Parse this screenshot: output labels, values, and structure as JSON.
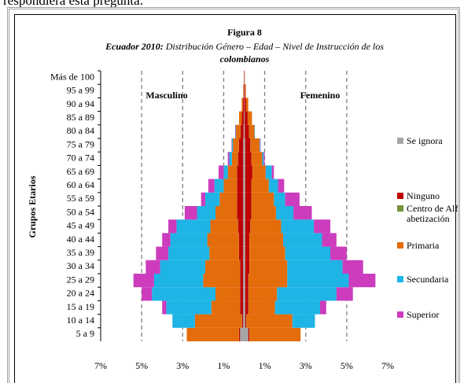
{
  "context_text": "respondiera esta pregunta:",
  "chart_data": {
    "type": "pyramid",
    "title": "Figura 8",
    "subtitle": [
      "Ecuador 2010:",
      " Distribución Género – Edad – Nivel de Instrucción de los",
      "colombianos"
    ],
    "y_label": "Grupos Etarios",
    "side_labels": [
      "Masculino",
      "Femenino"
    ],
    "categories": [
      "5 a 9",
      "10 a 14",
      "15 a 19",
      "20 a 24",
      "25 a 29",
      "30 a 34",
      "35 a 39",
      "40 a 44",
      "45 a 49",
      "50 a 54",
      "55 a 59",
      "60 a 64",
      "65 a 69",
      "70 a 74",
      "75 a 79",
      "80 a 84",
      "85 a 89",
      "90 a 94",
      "95 a 99",
      "Más de 100"
    ],
    "xlim": [
      -7,
      7
    ],
    "xticks": [
      {
        "value": -7,
        "label": "7%"
      },
      {
        "value": -5,
        "label": "5%"
      },
      {
        "value": -3,
        "label": "3%"
      },
      {
        "value": -1,
        "label": "1%"
      },
      {
        "value": 1,
        "label": "1%"
      },
      {
        "value": 3,
        "label": "3%"
      },
      {
        "value": 5,
        "label": "5%"
      },
      {
        "value": 7,
        "label": "7%"
      }
    ],
    "grid": true,
    "series": [
      {
        "name": "Se ignora",
        "color": "#a6a6a6",
        "male": [
          0.2,
          0.05,
          0.05,
          0.05,
          0.05,
          0.05,
          0.05,
          0.05,
          0.05,
          0.05,
          0.05,
          0.05,
          0.05,
          0.05,
          0.05,
          0.03,
          0.02,
          0.01,
          0.01,
          0.01
        ],
        "female": [
          0.2,
          0.05,
          0.05,
          0.05,
          0.05,
          0.05,
          0.05,
          0.05,
          0.05,
          0.05,
          0.05,
          0.05,
          0.05,
          0.05,
          0.05,
          0.03,
          0.02,
          0.01,
          0.01,
          0.01
        ]
      },
      {
        "name": "Ninguno",
        "color": "#c00000",
        "male": [
          0.05,
          0.05,
          0.15,
          0.15,
          0.15,
          0.15,
          0.2,
          0.2,
          0.25,
          0.3,
          0.3,
          0.3,
          0.3,
          0.25,
          0.2,
          0.15,
          0.1,
          0.05,
          0.02,
          0.01
        ],
        "female": [
          0.05,
          0.05,
          0.15,
          0.15,
          0.15,
          0.2,
          0.2,
          0.2,
          0.25,
          0.3,
          0.3,
          0.3,
          0.35,
          0.3,
          0.25,
          0.2,
          0.15,
          0.08,
          0.03,
          0.01
        ]
      },
      {
        "name": "Centro de Alfabetización",
        "color": "#77933c",
        "male": [
          0.01,
          0.01,
          0.01,
          0.01,
          0.01,
          0.01,
          0.01,
          0.01,
          0.01,
          0.01,
          0.01,
          0.01,
          0.01,
          0.01,
          0.01,
          0.01,
          0,
          0,
          0,
          0
        ],
        "female": [
          0.01,
          0.01,
          0.01,
          0.01,
          0.01,
          0.01,
          0.01,
          0.01,
          0.01,
          0.01,
          0.01,
          0.01,
          0.01,
          0.01,
          0.01,
          0.01,
          0,
          0,
          0,
          0
        ]
      },
      {
        "name": "Primaria",
        "color": "#e46c0a",
        "male": [
          2.54,
          2.29,
          1.39,
          1.19,
          1.79,
          1.69,
          1.44,
          1.54,
          1.34,
          1.04,
          0.84,
          0.64,
          0.44,
          0.29,
          0.29,
          0.21,
          0.13,
          0.06,
          0.02,
          0
        ],
        "female": [
          2.49,
          2.24,
          1.29,
          1.39,
          1.89,
          1.84,
          1.74,
          1.64,
          1.49,
          1.19,
          1.09,
          0.84,
          0.64,
          0.52,
          0.44,
          0.26,
          0.21,
          0.11,
          0.04,
          0.01
        ]
      },
      {
        "name": "Secundaria",
        "color": "#1eb4e6",
        "male": [
          0,
          1.1,
          2.2,
          3.1,
          2.4,
          2.2,
          2.0,
          1.8,
          1.65,
          0.9,
          0.7,
          0.45,
          0.2,
          0.13,
          0.05,
          0.02,
          0,
          0,
          0,
          0
        ],
        "female": [
          0,
          1.1,
          2.2,
          2.9,
          3.0,
          2.7,
          2.2,
          1.9,
          1.6,
          0.85,
          0.55,
          0.45,
          0.3,
          0.07,
          0.03,
          0.02,
          0,
          0,
          0,
          0
        ]
      },
      {
        "name": "Superior",
        "color": "#cc3cbd",
        "male": [
          0,
          0,
          0.2,
          0.5,
          1.0,
          0.7,
          0.6,
          0.4,
          0.4,
          0.6,
          0.2,
          0.3,
          0.25,
          0.07,
          0.02,
          0.02,
          0,
          0,
          0,
          0
        ],
        "female": [
          0,
          0,
          0.3,
          0.8,
          1.3,
          1.0,
          0.8,
          0.7,
          0.8,
          0.9,
          0.7,
          0.3,
          0.1,
          0.05,
          0.02,
          0,
          0,
          0,
          0,
          0
        ]
      }
    ]
  }
}
